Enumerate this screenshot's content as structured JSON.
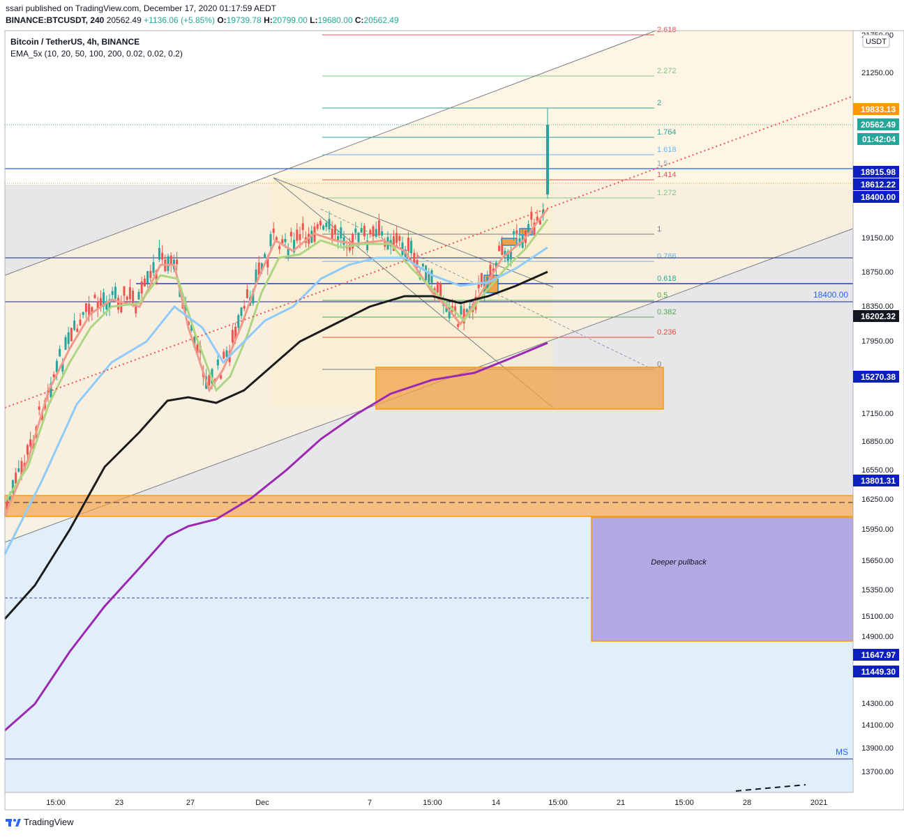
{
  "header": {
    "publisher_line": "ssari published on TradingView.com, December 17, 2020 01:17:59 AEDT",
    "symbol": "BINANCE:BTCUSDT, 240",
    "price": "20562.49",
    "change": "+1136.06 (+5.85%)",
    "o_label": "O:",
    "o_value": "19739.78",
    "h_label": "H:",
    "h_value": "20799.00",
    "l_label": "L:",
    "l_value": "19680.00",
    "c_label": "C:",
    "c_value": "20562.49"
  },
  "legend": {
    "title": "Bitcoin / TetherUS, 4h, BINANCE",
    "indicator": "EMA_5x (10, 20, 50, 100, 200, 0.02, 0.02, 0.2)"
  },
  "footer": {
    "brand": "TradingView"
  },
  "colors": {
    "up": "#26a69a",
    "down": "#ef5350",
    "blue_line": "#2962ff",
    "orange_box": "#f0a24a",
    "purple_box": "#b3a8e3",
    "magenta": "#9c27b0"
  },
  "chart_data": {
    "type": "line",
    "currency_label": "USDT",
    "y_ticks": [
      "21750.00",
      "21250.00",
      "19150.00",
      "18750.00",
      "18350.00",
      "17950.00",
      "17150.00",
      "16850.00",
      "16550.00",
      "16250.00",
      "15950.00",
      "15650.00",
      "15350.00",
      "15100.00",
      "14900.00",
      "14300.00",
      "14100.00",
      "13900.00",
      "13700.00"
    ],
    "x_ticks": [
      "15:00",
      "23",
      "27",
      "Dec",
      "7",
      "15:00",
      "14",
      "15:00",
      "21",
      "15:00",
      "28",
      "2021"
    ],
    "price_labels": [
      {
        "text": "19833.13",
        "kind": "orange"
      },
      {
        "text": "20562.49",
        "kind": "green"
      },
      {
        "text": "01:42:04",
        "kind": "green"
      },
      {
        "text": "18915.98",
        "kind": "navy"
      },
      {
        "text": "18612.22",
        "kind": "navy"
      },
      {
        "text": "18400.00",
        "kind": "navy"
      },
      {
        "text": "16202.32",
        "kind": "black"
      },
      {
        "text": "15270.38",
        "kind": "navy"
      },
      {
        "text": "13801.31",
        "kind": "navy"
      },
      {
        "text": "11647.97",
        "kind": "navy"
      },
      {
        "text": "11449.30",
        "kind": "navy"
      }
    ],
    "fib_levels": [
      {
        "label": "2.618",
        "color": "#ef5350"
      },
      {
        "label": "2.272",
        "color": "#81c784"
      },
      {
        "label": "2",
        "color": "#26a69a"
      },
      {
        "label": "1.764",
        "color": "#26a69a"
      },
      {
        "label": "1.618",
        "color": "#64b5f6"
      },
      {
        "label": "1.5",
        "color": "#90a4ae"
      },
      {
        "label": "1.414",
        "color": "#ef5350"
      },
      {
        "label": "1.272",
        "color": "#81c784"
      },
      {
        "label": "1",
        "color": "#787b86"
      },
      {
        "label": "0.786",
        "color": "#64b5f6"
      },
      {
        "label": "0.618",
        "color": "#26a69a"
      },
      {
        "label": "0.5",
        "color": "#4caf50"
      },
      {
        "label": "0.382",
        "color": "#4caf50"
      },
      {
        "label": "0.236",
        "color": "#f44336"
      },
      {
        "label": "0",
        "color": "#787b86"
      }
    ],
    "annotations": {
      "level_label": "18400.00",
      "pullback_label": "Deeper pullback",
      "ms_label": "MS"
    }
  }
}
